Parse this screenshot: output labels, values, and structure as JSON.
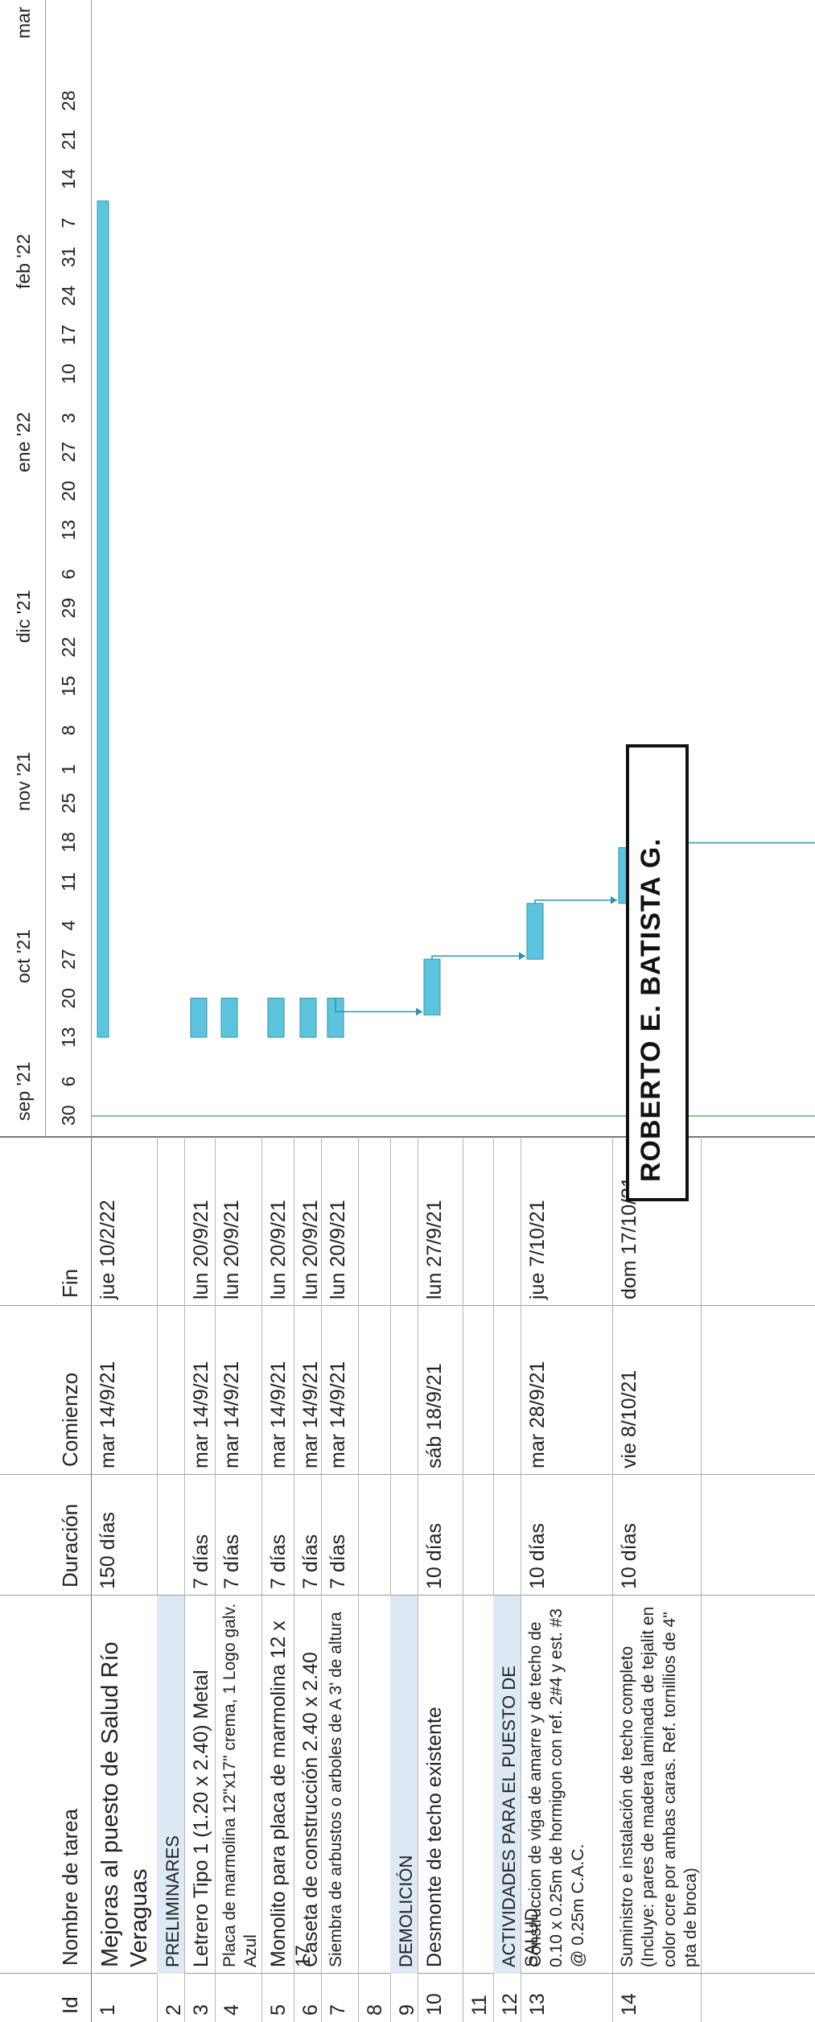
{
  "columns": {
    "id": "Id",
    "name": "Nombre de tarea",
    "duration": "Duración",
    "start": "Comienzo",
    "finish": "Fin"
  },
  "tasks": [
    {
      "id": "1",
      "name": "Mejoras al puesto de Salud Río Veraguas",
      "duration": "150 días",
      "start": "mar 14/9/21",
      "finish": "jue 10/2/22",
      "summary": true
    },
    {
      "id": "2",
      "name": "PRELIMINARES",
      "duration": "",
      "start": "",
      "finish": "",
      "section": true
    },
    {
      "id": "3",
      "name": "Letrero Tipo 1 (1.20 x 2.40) Metal",
      "duration": "7 días",
      "start": "mar 14/9/21",
      "finish": "lun 20/9/21"
    },
    {
      "id": "4",
      "name": "Placa de marmolina 12\"x17\" crema, 1 Logo galv. Azul",
      "duration": "7 días",
      "start": "mar 14/9/21",
      "finish": "lun 20/9/21"
    },
    {
      "id": "5",
      "name": "Monolito para placa de marmolina 12 x 17",
      "duration": "7 días",
      "start": "mar 14/9/21",
      "finish": "lun 20/9/21"
    },
    {
      "id": "6",
      "name": "Caseta de construcción 2.40 x 2.40",
      "duration": "7 días",
      "start": "mar 14/9/21",
      "finish": "lun 20/9/21"
    },
    {
      "id": "7",
      "name": "Siembra de arbustos o arboles de A 3' de altura",
      "duration": "7 días",
      "start": "mar 14/9/21",
      "finish": "lun 20/9/21"
    },
    {
      "id": "8",
      "name": "",
      "duration": "",
      "start": "",
      "finish": ""
    },
    {
      "id": "9",
      "name": "DEMOLICIÓN",
      "duration": "",
      "start": "",
      "finish": "",
      "section": true
    },
    {
      "id": "10",
      "name": "Desmonte de techo existente",
      "duration": "10 días",
      "start": "sáb 18/9/21",
      "finish": "lun 27/9/21"
    },
    {
      "id": "11",
      "name": "",
      "duration": "",
      "start": "",
      "finish": ""
    },
    {
      "id": "12",
      "name": "ACTIVIDADES PARA EL PUESTO DE SALUD",
      "duration": "",
      "start": "",
      "finish": "",
      "section": true
    },
    {
      "id": "13",
      "name": "Construccion de viga de amarre y de techo de 0.10 x 0.25m de hormigon con ref. 2#4 y est. #3 @ 0.25m C.A.C.",
      "duration": "10 días",
      "start": "mar 28/9/21",
      "finish": "jue 7/10/21"
    },
    {
      "id": "14",
      "name": "Suministro e instalación de techo completo (Incluye: pares de madera laminada de tejalit en color ocre por ambas caras. Ref. tornillios de 4\" pta de broca)",
      "duration": "10 días",
      "start": "vie 8/10/21",
      "finish": "dom 17/10/21"
    }
  ],
  "timeline": {
    "months": [
      "sep '21",
      "oct '21",
      "nov '21",
      "dic '21",
      "ene '22",
      "feb '22",
      "mar"
    ],
    "days": [
      "30",
      "6",
      "13",
      "20",
      "27",
      "4",
      "11",
      "18",
      "25",
      "1",
      "8",
      "15",
      "22",
      "29",
      "6",
      "13",
      "20",
      "27",
      "3",
      "10",
      "17",
      "24",
      "31",
      "7",
      "14",
      "21",
      "28"
    ]
  },
  "stamp_text": "ROBERTO E. BATISTA G."
}
